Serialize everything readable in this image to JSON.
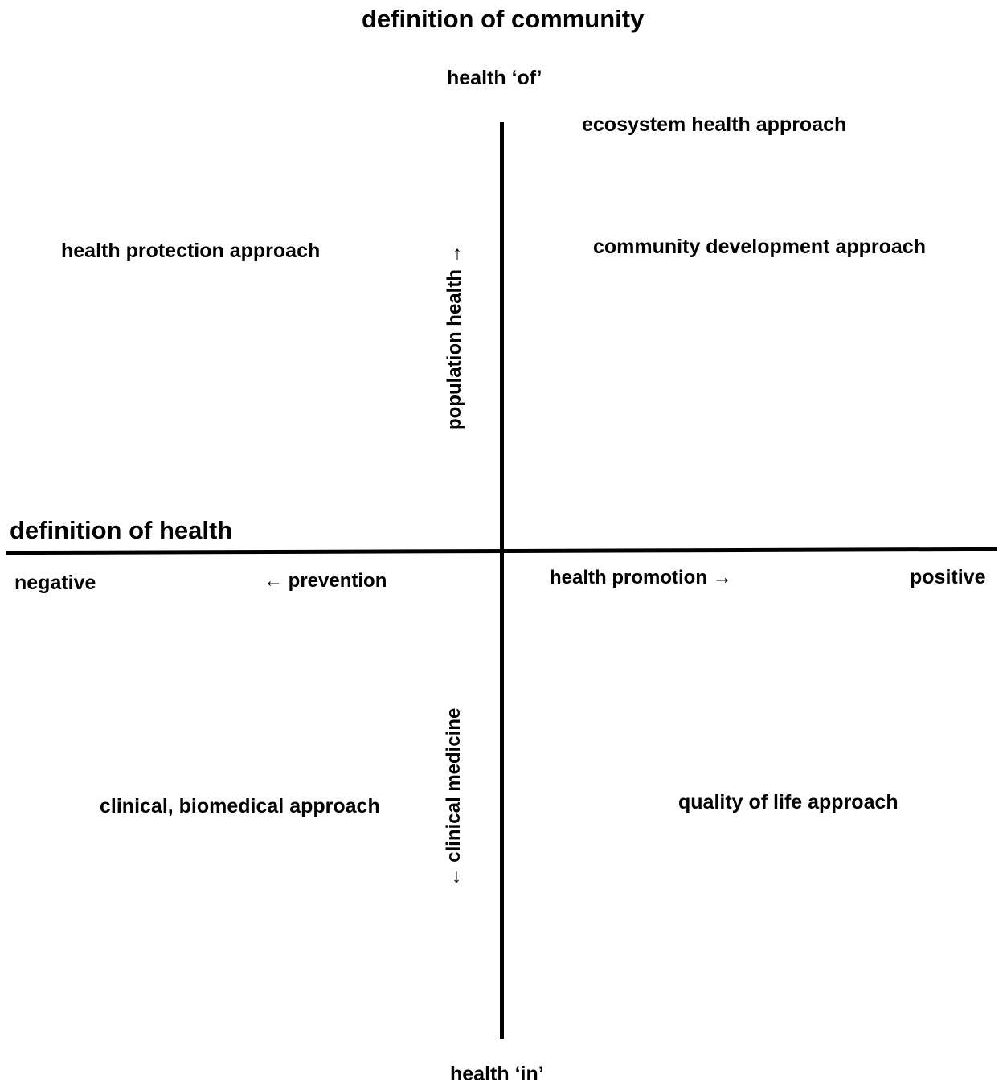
{
  "titles": {
    "community": "definition of community",
    "health": "definition of health"
  },
  "poles": {
    "top": "health ‘of’",
    "bottom": "health ‘in’",
    "left": "negative",
    "right": "positive"
  },
  "directions": {
    "prevention": "← prevention",
    "health_promotion": "health promotion →",
    "population_health": "population health →",
    "clinical_medicine": "← clinical medicine"
  },
  "approaches": {
    "ecosystem": "ecosystem health approach",
    "community_development": "community development approach",
    "health_protection": "health protection approach",
    "clinical_biomedical": "clinical, biomedical approach",
    "quality_of_life": "quality of life approach"
  }
}
